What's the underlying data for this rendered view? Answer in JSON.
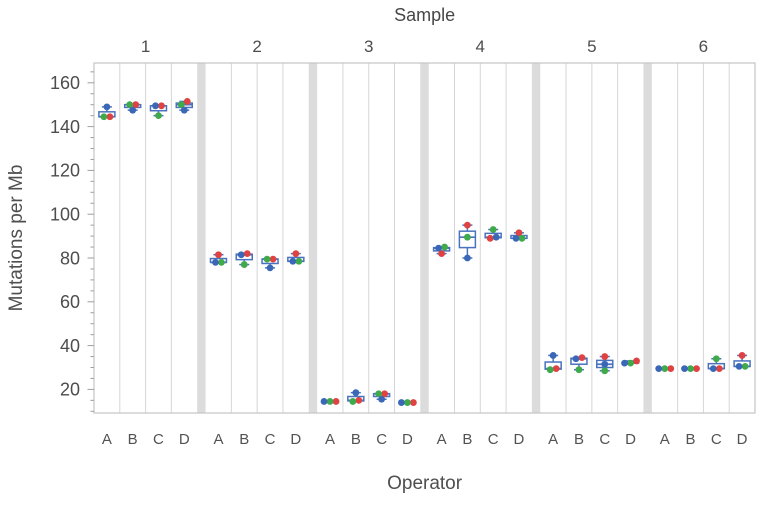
{
  "chart_data": {
    "type": "grouped-box-scatter",
    "title": "Sample",
    "x_top_group_label": "Sample",
    "xlabel": "Operator",
    "ylabel": "Mutations per Mb",
    "samples": [
      "1",
      "2",
      "3",
      "4",
      "5",
      "6"
    ],
    "operators": [
      "A",
      "B",
      "C",
      "D"
    ],
    "y_ticks": [
      20,
      40,
      60,
      80,
      100,
      120,
      140,
      160
    ],
    "y_minor_tick_step": 5,
    "ylim": [
      9,
      169
    ],
    "grid_on": true,
    "legend": "none",
    "replicates": [
      "red",
      "green",
      "blue"
    ],
    "colors": {
      "red": "#e04141",
      "green": "#3fa94c",
      "blue": "#3a67b6",
      "box": "#4a72bf",
      "separator_band": "#dcdcdc",
      "gridline": "#d6d6d6",
      "border": "#c4c4c4",
      "tick": "#9e9e9e",
      "text": "#4d4d4d"
    },
    "values": {
      "1": {
        "A": [
          144.5,
          144.5,
          149
        ],
        "B": [
          150,
          150,
          147.5
        ],
        "C": [
          149.5,
          145,
          149.5
        ],
        "D": [
          151.5,
          150,
          147.5
        ]
      },
      "2": {
        "A": [
          81.5,
          78,
          78
        ],
        "B": [
          82,
          77,
          81.5
        ],
        "C": [
          79.5,
          79.5,
          75.5
        ],
        "D": [
          82,
          78.5,
          78.5
        ]
      },
      "3": {
        "A": [
          14.5,
          14.5,
          14.5
        ],
        "B": [
          15,
          14.5,
          18.5
        ],
        "C": [
          18,
          18,
          15.5
        ],
        "D": [
          14,
          14,
          14
        ]
      },
      "4": {
        "A": [
          82,
          85,
          84.5
        ],
        "B": [
          95,
          89.5,
          80
        ],
        "C": [
          89,
          93,
          89.5
        ],
        "D": [
          91.5,
          89,
          89
        ]
      },
      "5": {
        "A": [
          29.5,
          29,
          35.5
        ],
        "B": [
          34.5,
          29,
          34
        ],
        "C": [
          35,
          28.5,
          31.5
        ],
        "D": [
          33,
          32,
          32
        ]
      },
      "6": {
        "A": [
          29.5,
          29.5,
          29.5
        ],
        "B": [
          29.5,
          29.5,
          29.5
        ],
        "C": [
          29.5,
          34,
          29.5
        ],
        "D": [
          35.5,
          30.5,
          30.5
        ]
      }
    }
  }
}
